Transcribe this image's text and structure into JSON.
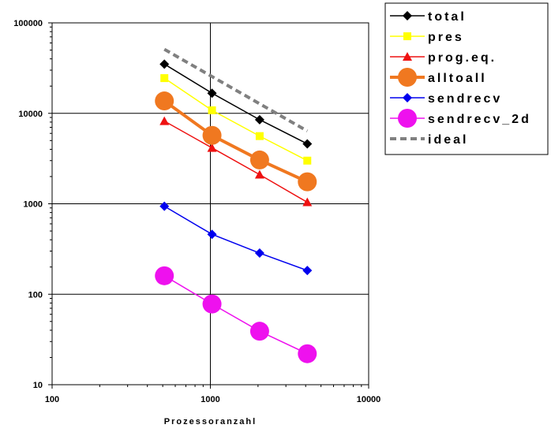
{
  "chart_data": {
    "type": "line",
    "title": "",
    "xlabel": "Prozessoranzahl",
    "ylabel": "",
    "x_scale": "log",
    "y_scale": "log",
    "xlim": [
      100,
      10000
    ],
    "ylim": [
      10,
      100000
    ],
    "x_ticks": [
      "100",
      "1000",
      "10000"
    ],
    "y_ticks": [
      "10",
      "100",
      "1000",
      "10000",
      "100000"
    ],
    "grid": "major gridlines",
    "legend_position": "right",
    "series": [
      {
        "name": "total",
        "color": "#000000",
        "marker": "diamond",
        "style": "solid",
        "x": [
          512,
          1024,
          2048,
          4096
        ],
        "y": [
          35000,
          16700,
          8500,
          4600
        ]
      },
      {
        "name": "pres",
        "color": "#ffff00",
        "marker": "square",
        "style": "solid",
        "x": [
          512,
          1024,
          2048,
          4096
        ],
        "y": [
          24500,
          10800,
          5600,
          3000
        ]
      },
      {
        "name": "prog.eq.",
        "color": "#ee1111",
        "marker": "triangle",
        "style": "solid",
        "x": [
          512,
          1024,
          2048,
          4096
        ],
        "y": [
          8200,
          4150,
          2100,
          1040
        ]
      },
      {
        "name": "alltoall",
        "color": "#f07820",
        "marker": "circle-large",
        "style": "thick",
        "x": [
          512,
          1024,
          2048,
          4096
        ],
        "y": [
          13700,
          5700,
          3050,
          1750
        ]
      },
      {
        "name": "sendrecv",
        "color": "#0000ee",
        "marker": "diamond",
        "style": "solid",
        "x": [
          512,
          1024,
          2048,
          4096
        ],
        "y": [
          940,
          460,
          285,
          183
        ]
      },
      {
        "name": "sendrecv_2d",
        "color": "#ee11ee",
        "marker": "circle-large",
        "style": "solid",
        "x": [
          512,
          1024,
          2048,
          4096
        ],
        "y": [
          160,
          78,
          39,
          22
        ]
      },
      {
        "name": "ideal",
        "color": "#808080",
        "marker": "none",
        "style": "dashed",
        "x": [
          512,
          4096
        ],
        "y": [
          51000,
          6375
        ]
      }
    ]
  }
}
